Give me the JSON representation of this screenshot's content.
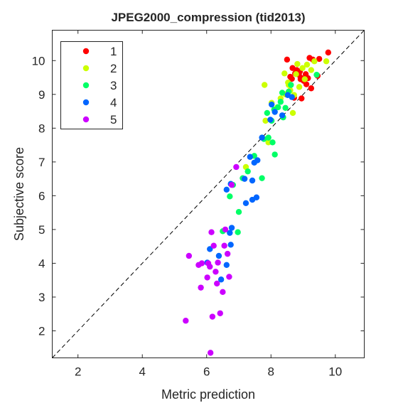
{
  "chart_data": {
    "type": "scatter",
    "title": "JPEG2000_compression (tid2013)",
    "xlabel": "Metric prediction",
    "ylabel": "Subjective score",
    "xlim": [
      1.2,
      10.9
    ],
    "ylim": [
      1.2,
      10.9
    ],
    "xticks": [
      2,
      4,
      6,
      8,
      10
    ],
    "yticks": [
      2,
      3,
      4,
      5,
      6,
      7,
      8,
      9,
      10
    ],
    "grid": false,
    "legend_position": "top-left",
    "reference_line": "dashed diagonal y = x",
    "series": [
      {
        "name": "1",
        "color": "#ff0000",
        "points": [
          [
            8.5,
            10.03
          ],
          [
            8.67,
            9.78
          ],
          [
            8.75,
            9.62
          ],
          [
            8.8,
            9.72
          ],
          [
            8.87,
            9.58
          ],
          [
            8.92,
            9.45
          ],
          [
            8.95,
            9.48
          ],
          [
            9.02,
            9.4
          ],
          [
            9.08,
            9.6
          ],
          [
            9.15,
            9.48
          ],
          [
            9.2,
            10.08
          ],
          [
            9.3,
            10.03
          ],
          [
            9.5,
            10.05
          ],
          [
            9.78,
            10.24
          ],
          [
            8.65,
            9.46
          ],
          [
            8.72,
            8.9
          ],
          [
            8.9,
            9.68
          ],
          [
            9.0,
            9.43
          ],
          [
            9.1,
            9.3
          ],
          [
            9.25,
            9.18
          ],
          [
            8.6,
            9.52
          ],
          [
            9.45,
            9.55
          ],
          [
            8.95,
            8.88
          ]
        ]
      },
      {
        "name": "2",
        "color": "#ccff00",
        "points": [
          [
            7.8,
            9.28
          ],
          [
            8.02,
            8.75
          ],
          [
            8.2,
            8.62
          ],
          [
            8.3,
            8.88
          ],
          [
            8.45,
            9.0
          ],
          [
            8.53,
            9.35
          ],
          [
            8.6,
            9.12
          ],
          [
            8.68,
            8.45
          ],
          [
            8.72,
            8.98
          ],
          [
            8.78,
            9.6
          ],
          [
            8.82,
            9.9
          ],
          [
            8.88,
            9.22
          ],
          [
            8.98,
            9.78
          ],
          [
            9.12,
            9.88
          ],
          [
            9.25,
            9.72
          ],
          [
            9.35,
            9.98
          ],
          [
            9.72,
            9.98
          ],
          [
            7.92,
            7.58
          ],
          [
            7.83,
            8.22
          ],
          [
            7.22,
            6.85
          ],
          [
            8.42,
            9.62
          ],
          [
            8.55,
            9.28
          ],
          [
            9.05,
            9.45
          ]
        ]
      },
      {
        "name": "3",
        "color": "#00ff66",
        "points": [
          [
            6.5,
            4.95
          ],
          [
            6.97,
            4.92
          ],
          [
            6.72,
            5.98
          ],
          [
            6.82,
            6.32
          ],
          [
            7.0,
            5.52
          ],
          [
            7.12,
            6.52
          ],
          [
            7.28,
            6.72
          ],
          [
            7.48,
            7.18
          ],
          [
            7.72,
            6.52
          ],
          [
            7.78,
            7.68
          ],
          [
            7.92,
            7.72
          ],
          [
            8.05,
            7.58
          ],
          [
            8.12,
            7.22
          ],
          [
            7.88,
            8.45
          ],
          [
            8.1,
            8.55
          ],
          [
            8.22,
            8.62
          ],
          [
            8.3,
            8.78
          ],
          [
            8.38,
            8.32
          ],
          [
            8.45,
            8.6
          ],
          [
            8.55,
            9.08
          ],
          [
            8.62,
            9.28
          ],
          [
            9.42,
            9.58
          ],
          [
            8.02,
            8.22
          ],
          [
            8.35,
            9.05
          ]
        ]
      },
      {
        "name": "4",
        "color": "#0066ff",
        "points": [
          [
            6.02,
            4.02
          ],
          [
            6.1,
            4.42
          ],
          [
            6.38,
            4.22
          ],
          [
            6.62,
            3.95
          ],
          [
            6.45,
            3.52
          ],
          [
            6.75,
            4.55
          ],
          [
            6.72,
            4.9
          ],
          [
            6.78,
            5.05
          ],
          [
            6.62,
            6.18
          ],
          [
            6.75,
            6.35
          ],
          [
            7.22,
            5.78
          ],
          [
            7.42,
            5.88
          ],
          [
            7.55,
            5.95
          ],
          [
            7.42,
            6.45
          ],
          [
            7.18,
            6.5
          ],
          [
            7.35,
            7.15
          ],
          [
            7.48,
            6.98
          ],
          [
            7.58,
            7.05
          ],
          [
            7.72,
            7.72
          ],
          [
            7.98,
            8.25
          ],
          [
            8.02,
            8.7
          ],
          [
            8.12,
            8.48
          ],
          [
            8.35,
            8.38
          ],
          [
            8.52,
            8.98
          ],
          [
            8.65,
            8.92
          ]
        ]
      },
      {
        "name": "5",
        "color": "#cc00ff",
        "points": [
          [
            5.35,
            2.3
          ],
          [
            5.45,
            4.22
          ],
          [
            5.75,
            3.95
          ],
          [
            5.85,
            4.0
          ],
          [
            5.82,
            3.28
          ],
          [
            6.02,
            3.58
          ],
          [
            6.05,
            4.0
          ],
          [
            6.1,
            3.9
          ],
          [
            6.15,
            4.92
          ],
          [
            6.22,
            4.52
          ],
          [
            6.28,
            3.75
          ],
          [
            6.32,
            3.4
          ],
          [
            6.18,
            2.42
          ],
          [
            6.42,
            2.52
          ],
          [
            6.5,
            3.15
          ],
          [
            6.55,
            4.52
          ],
          [
            6.58,
            5.0
          ],
          [
            6.65,
            4.28
          ],
          [
            6.78,
            6.32
          ],
          [
            6.92,
            6.85
          ],
          [
            6.12,
            1.35
          ],
          [
            6.7,
            3.6
          ],
          [
            6.35,
            4.02
          ]
        ]
      }
    ]
  }
}
